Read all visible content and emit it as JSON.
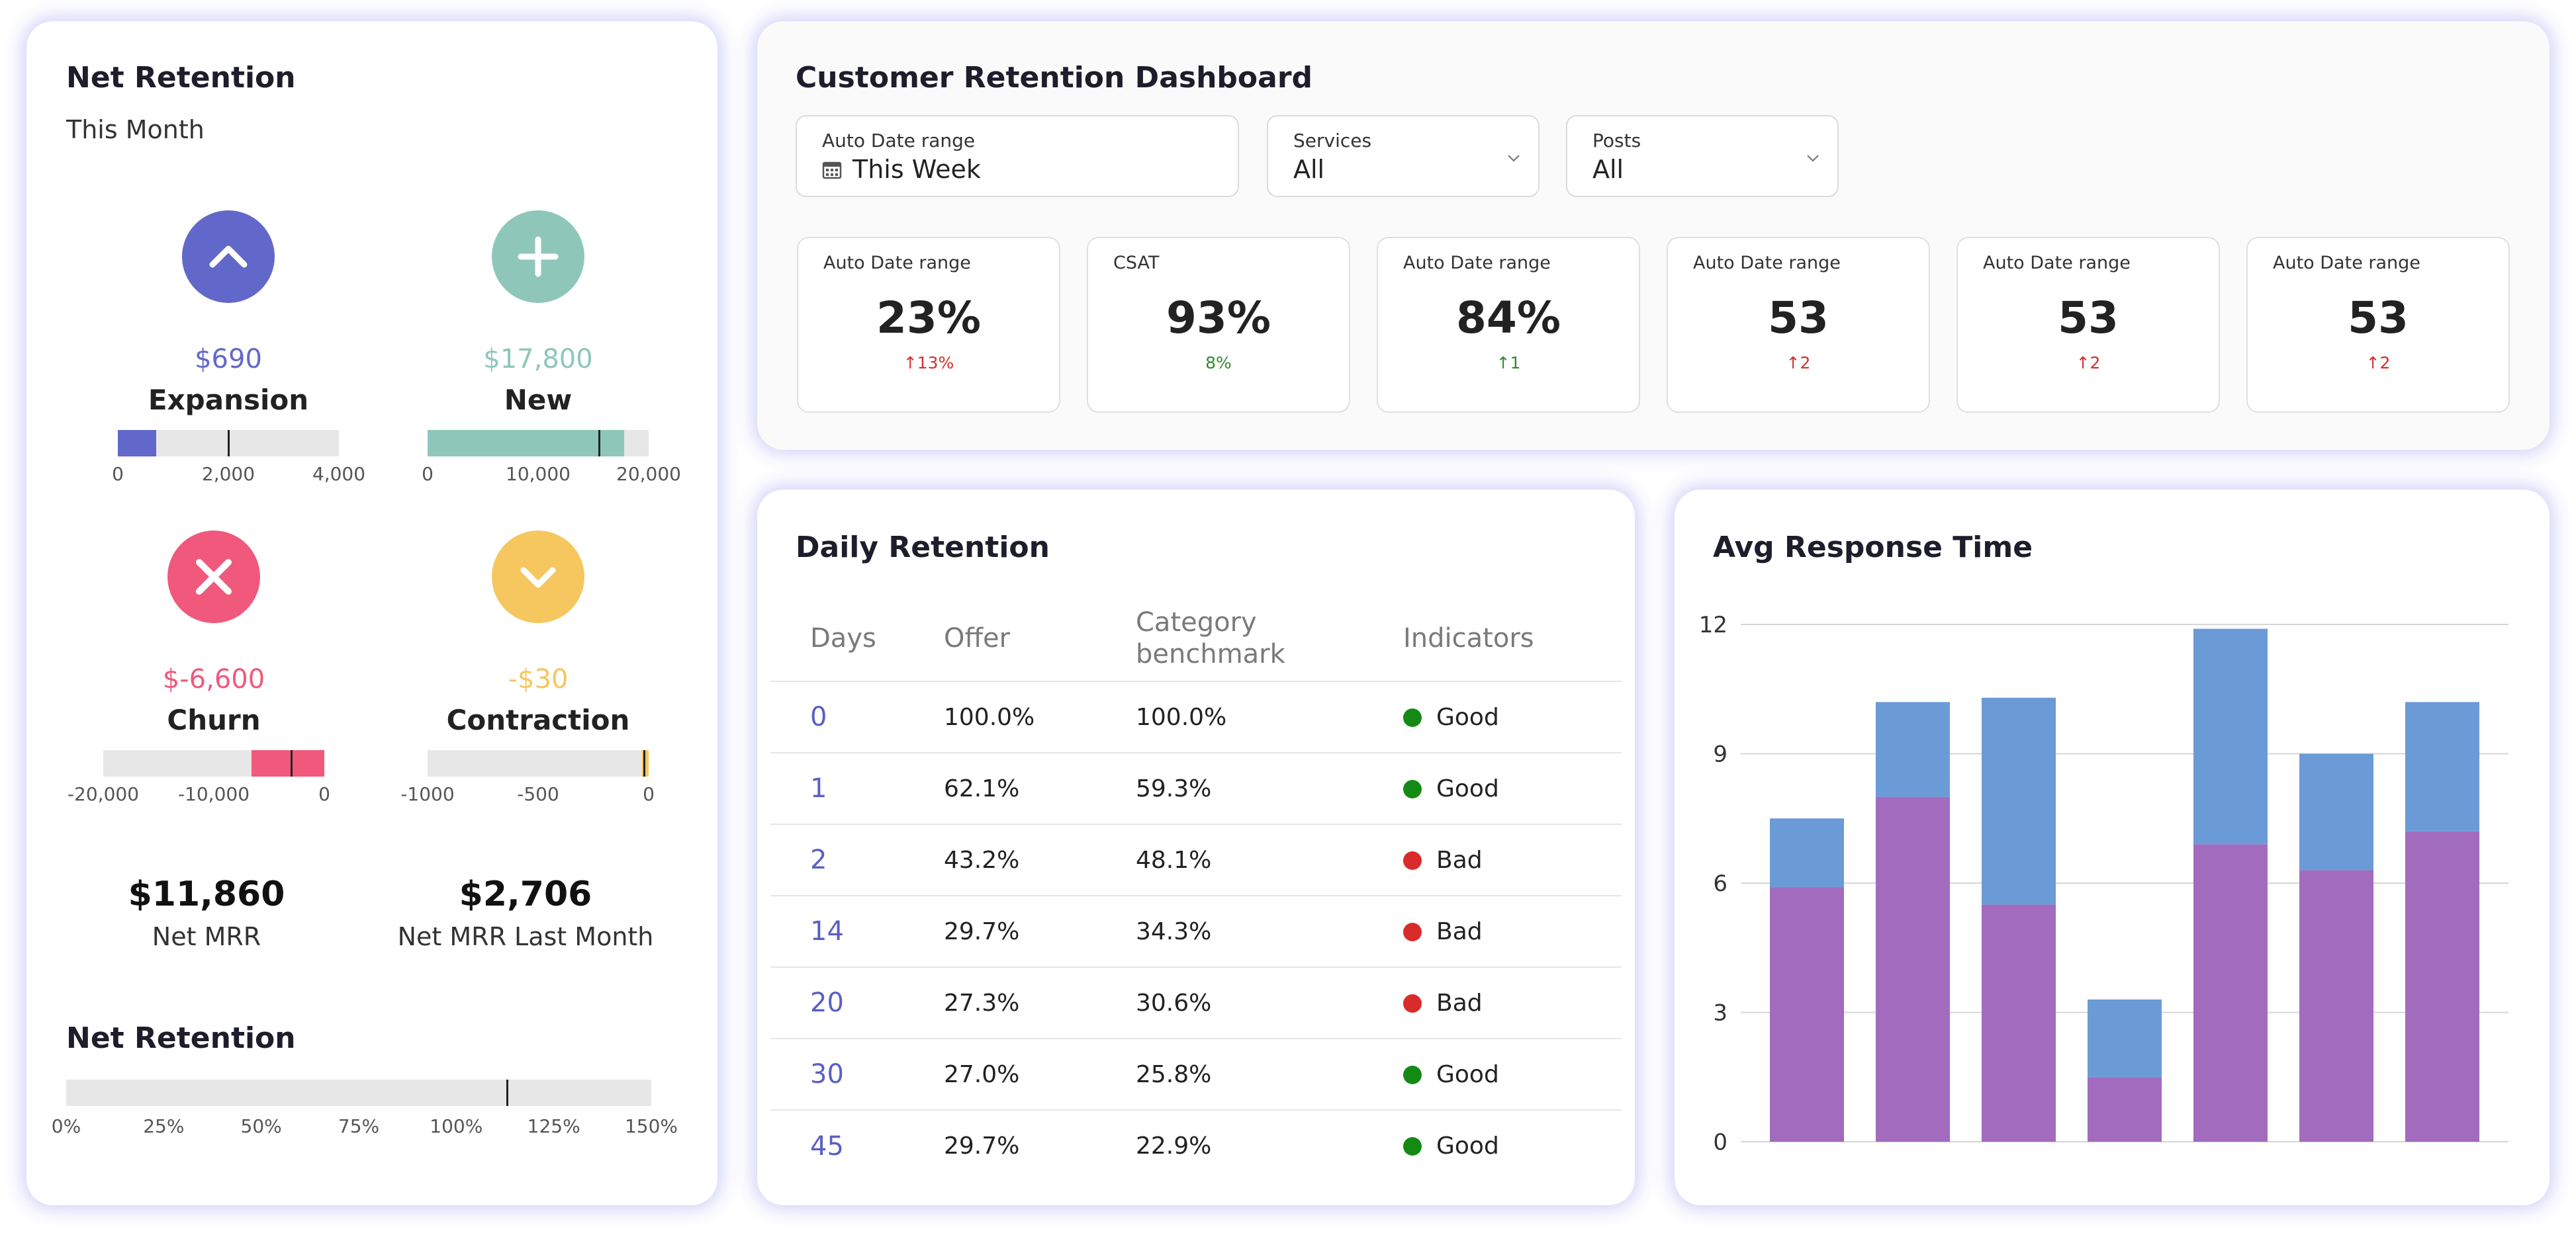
{
  "left": {
    "title": "Net Retention",
    "subtitle": "This Month",
    "metrics": [
      {
        "value": "$690",
        "name": "Expansion",
        "icon": "chevron-up-icon",
        "color": "#6268c9",
        "bar": {
          "min": 0,
          "max": 4000,
          "fill": 690,
          "marker": 2000,
          "ticks": [
            "0",
            "2,000",
            "4,000"
          ]
        }
      },
      {
        "value": "$17,800",
        "name": "New",
        "icon": "plus-icon",
        "color": "#8ec7b9",
        "bar": {
          "min": 0,
          "max": 20000,
          "fill": 17800,
          "marker": 15500,
          "ticks": [
            "0",
            "10,000",
            "20,000"
          ]
        }
      },
      {
        "value": "$-6,600",
        "name": "Churn",
        "icon": "close-icon",
        "color": "#f0597c",
        "bar": {
          "min": -20000,
          "max": 0,
          "fill": -6600,
          "marker": -3000,
          "ticks": [
            "-20,000",
            "-10,000",
            "0"
          ]
        }
      },
      {
        "value": "-$30",
        "name": "Contraction",
        "icon": "chevron-down-icon",
        "color": "#f5c75e",
        "bar": {
          "min": -1000,
          "max": 0,
          "fill": -30,
          "marker": -20,
          "ticks": [
            "-1000",
            "-500",
            "0"
          ]
        }
      }
    ],
    "mrr": {
      "value": "$11,860",
      "label": "Net MRR"
    },
    "mrr_last": {
      "value": "$2,706",
      "label": "Net MRR Last Month"
    },
    "retention": {
      "title": "Net Retention",
      "marker_pct": 113,
      "ticks": [
        "0%",
        "25%",
        "50%",
        "75%",
        "100%",
        "125%",
        "150%"
      ]
    }
  },
  "dashboard": {
    "title": "Customer Retention Dashboard",
    "filters": [
      {
        "label": "Auto Date range",
        "value": "This Week",
        "icon": "calendar-icon"
      },
      {
        "label": "Services",
        "value": "All",
        "icon": "chevron-down-icon"
      },
      {
        "label": "Posts",
        "value": "All",
        "icon": "chevron-down-icon"
      }
    ],
    "kpis": [
      {
        "label": "Auto Date range",
        "value": "23%",
        "delta": "↑13%",
        "trend": "up",
        "color": "#d32f2f"
      },
      {
        "label": "CSAT",
        "value": "93%",
        "delta": "8%",
        "trend": "none",
        "color": "#2e8b2e"
      },
      {
        "label": "Auto Date range",
        "value": "84%",
        "delta": "↑1",
        "trend": "up",
        "color": "#2e8b2e"
      },
      {
        "label": "Auto Date range",
        "value": "53",
        "delta": "↑2",
        "trend": "up",
        "color": "#d32f2f"
      },
      {
        "label": "Auto Date range",
        "value": "53",
        "delta": "↑2",
        "trend": "up",
        "color": "#d32f2f"
      },
      {
        "label": "Auto Date range",
        "value": "53",
        "delta": "↑2",
        "trend": "up",
        "color": "#d32f2f"
      }
    ]
  },
  "daily": {
    "title": "Daily Retention",
    "headers": [
      "Days",
      "Offer",
      "Category benchmark",
      "Indicators"
    ],
    "rows": [
      {
        "days": "0",
        "offer": "100.0%",
        "bench": "100.0%",
        "indicator": "Good"
      },
      {
        "days": "1",
        "offer": "62.1%",
        "bench": "59.3%",
        "indicator": "Good"
      },
      {
        "days": "2",
        "offer": "43.2%",
        "bench": "48.1%",
        "indicator": "Bad"
      },
      {
        "days": "14",
        "offer": "29.7%",
        "bench": "34.3%",
        "indicator": "Bad"
      },
      {
        "days": "20",
        "offer": "27.3%",
        "bench": "30.6%",
        "indicator": "Bad"
      },
      {
        "days": "30",
        "offer": "27.0%",
        "bench": "25.8%",
        "indicator": "Good"
      },
      {
        "days": "45",
        "offer": "29.7%",
        "bench": "22.9%",
        "indicator": "Good"
      }
    ],
    "colors": {
      "Good": "#148a14",
      "Bad": "#d92b2b"
    }
  },
  "chart_data": {
    "type": "bar",
    "stacked": true,
    "title": "Avg Response Time",
    "xlabel": "",
    "ylabel": "",
    "ylim": [
      0,
      12
    ],
    "yticks": [
      0,
      3,
      6,
      9,
      12
    ],
    "grid": true,
    "series": [
      {
        "color": "#a36bbd",
        "values": [
          5.9,
          8.0,
          5.5,
          1.5,
          6.9,
          6.3,
          7.2
        ]
      },
      {
        "color": "#6b9bd6",
        "values": [
          1.6,
          2.2,
          4.8,
          1.8,
          5.0,
          2.7,
          3.0
        ]
      }
    ]
  }
}
